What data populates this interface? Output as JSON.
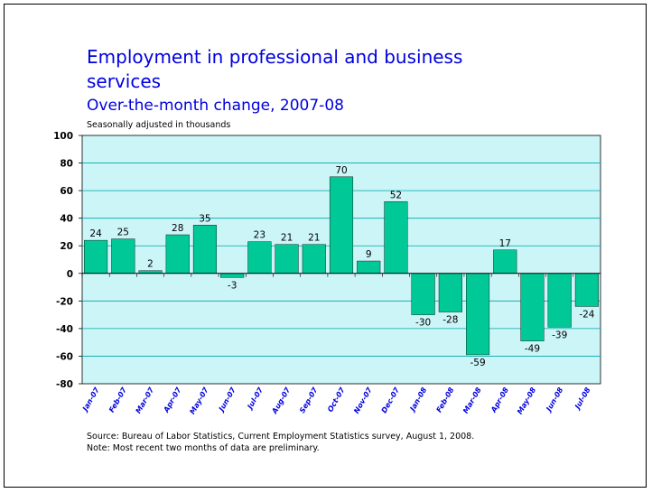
{
  "chart_data": {
    "type": "bar",
    "title": "Employment in professional and business services",
    "subtitle": "Over-the-month change, 2007-08",
    "ylabel": "Seasonally adjusted in thousands",
    "xlabel": "",
    "categories": [
      "Jan-07",
      "Feb-07",
      "Mar-07",
      "Apr-07",
      "May-07",
      "Jun-07",
      "Jul-07",
      "Aug-07",
      "Sep-07",
      "Oct-07",
      "Nov-07",
      "Dec-07",
      "Jan-08",
      "Feb-08",
      "Mar-08",
      "Apr-08",
      "May-08",
      "Jun-08",
      "Jul-08"
    ],
    "values": [
      24,
      25,
      2,
      28,
      35,
      -3,
      23,
      21,
      21,
      70,
      9,
      52,
      -30,
      -28,
      -59,
      17,
      -49,
      -39,
      -24
    ],
    "ylim": [
      -80,
      100
    ],
    "yticks": [
      -80,
      -60,
      -40,
      -20,
      0,
      20,
      40,
      60,
      80,
      100
    ],
    "grid": true,
    "colors": {
      "bar": "#00c896",
      "plot_background": "#ccf5f8",
      "grid": "#00a8a8",
      "title": "#0000e0",
      "xtick": "#0000e0"
    }
  },
  "notes": {
    "source": "Source:  Bureau of Labor Statistics, Current Employment Statistics survey, August 1, 2008.",
    "note": "Note:  Most recent two months of data are preliminary."
  }
}
